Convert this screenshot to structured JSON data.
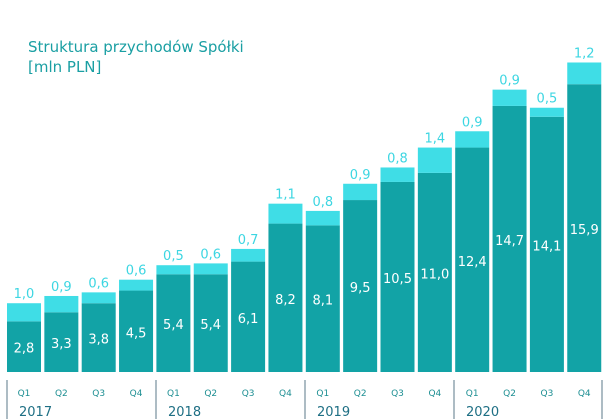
{
  "chart_data": {
    "type": "bar",
    "stacked": true,
    "title": "Struktura przychodów Spółki",
    "subtitle": "[mln PLN]",
    "categories": [
      "Q1",
      "Q2",
      "Q3",
      "Q4",
      "Q1",
      "Q2",
      "Q3",
      "Q4",
      "Q1",
      "Q2",
      "Q3",
      "Q4",
      "Q1",
      "Q2",
      "Q3",
      "Q4"
    ],
    "years": [
      "2017",
      "2018",
      "2019",
      "2020"
    ],
    "series": [
      {
        "values": [
          "2,8",
          "3,3",
          "3,8",
          "4,5",
          "5,4",
          "5,4",
          "6,1",
          "8,2",
          "8,1",
          "9,5",
          "10,5",
          "11,0",
          "12,4",
          "14,7",
          "14,1",
          "15,9"
        ]
      },
      {
        "values": [
          "1,0",
          "0,9",
          "0,6",
          "0,6",
          "0,5",
          "0,6",
          "0,7",
          "1,1",
          "0,8",
          "0,9",
          "0,8",
          "1,4",
          "0,9",
          "0,9",
          "0,5",
          "1,2"
        ]
      }
    ],
    "ylim": [
      0,
      17.1
    ],
    "colors": {
      "base": "#12a3a6",
      "top": "#3fdde6",
      "inner_label": "#ffffff",
      "top_label": "#3dd6e2",
      "axis_text": "#1e8f93"
    }
  }
}
